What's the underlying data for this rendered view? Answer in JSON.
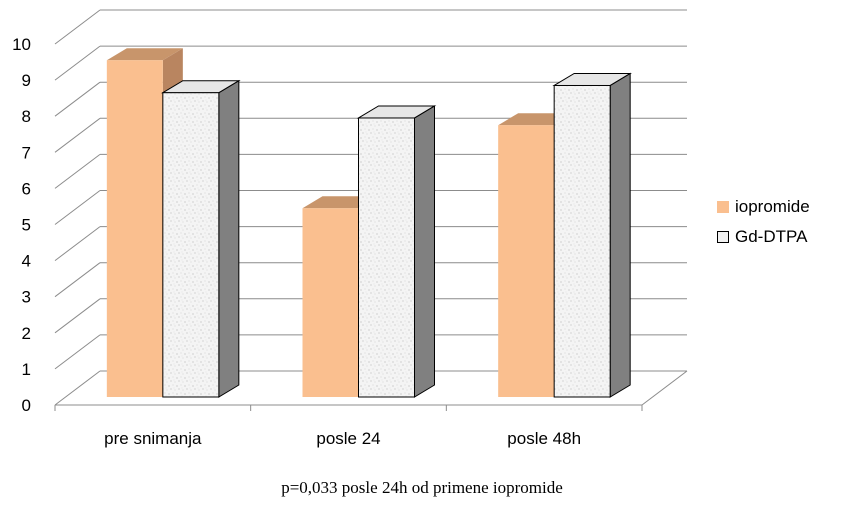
{
  "chart_data": {
    "type": "bar",
    "categories": [
      "pre snimanja",
      "posle 24",
      "posle 48h"
    ],
    "series": [
      {
        "name": "iopromide",
        "values": [
          9.8,
          5.7,
          8.0
        ],
        "color": "#fabf8f"
      },
      {
        "name": "Gd-DTPA",
        "values": [
          8.9,
          8.2,
          9.1
        ],
        "color": "#f2f2f2"
      }
    ],
    "ylim": [
      0,
      10
    ],
    "yticks": [
      0,
      1,
      2,
      3,
      4,
      5,
      6,
      7,
      8,
      9,
      10
    ],
    "grid": true,
    "three_d": true,
    "legend_position": "right",
    "xlabel": "",
    "ylabel": "",
    "title": ""
  },
  "legend": {
    "items": [
      "iopromide",
      "Gd-DTPA"
    ]
  },
  "caption": "p=0,033 posle 24h od primene iopromide"
}
